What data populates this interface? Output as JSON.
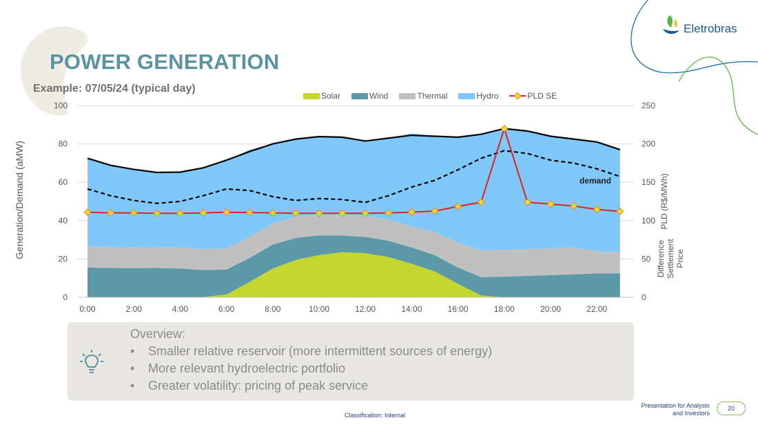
{
  "slide": {
    "title": "POWER GENERATION",
    "subtitle": "Example: 07/05/24 (typical day)",
    "logo_text": "Eletrobras",
    "classification": "Classification: Internal",
    "footer_text": "Presentation for Analysts and Investors",
    "page_number": "20"
  },
  "colors": {
    "solar": "#c6d630",
    "wind": "#5b98a8",
    "thermal": "#c0c0c0",
    "hydro": "#80c8fa",
    "pld": "#e02020",
    "pld_marker": "#f5d43a",
    "title": "#5b93a3",
    "overview_bg": "#e8e7e0"
  },
  "overview": {
    "title": "Overview:",
    "items": [
      "Smaller relative reservoir (more intermittent sources of energy)",
      "More relevant hydroelectric portfolio",
      "Greater volatility: pricing of peak service"
    ]
  },
  "chart_data": {
    "type": "area",
    "title": "",
    "xlabel": "",
    "ylabel": "Generation/Demand (aMW)",
    "y2label": "PLD (R$/MWh)",
    "y2label_note": "Difference Settlement Price",
    "ylim": [
      0,
      100
    ],
    "y2lim": [
      0,
      250
    ],
    "yticks": [
      0,
      20,
      40,
      60,
      80,
      100
    ],
    "y2ticks": [
      0,
      50,
      100,
      150,
      200,
      250
    ],
    "grid": true,
    "legend_position": "top",
    "x": [
      "0:00",
      "1:00",
      "2:00",
      "3:00",
      "4:00",
      "5:00",
      "6:00",
      "7:00",
      "8:00",
      "9:00",
      "10:00",
      "11:00",
      "12:00",
      "13:00",
      "14:00",
      "15:00",
      "16:00",
      "17:00",
      "18:00",
      "19:00",
      "20:00",
      "21:00",
      "22:00",
      "23:00"
    ],
    "x_tick_labels": [
      "0:00",
      "2:00",
      "4:00",
      "6:00",
      "8:00",
      "10:00",
      "12:00",
      "14:00",
      "16:00",
      "18:00",
      "20:00",
      "22:00"
    ],
    "stacked_series": [
      {
        "name": "Solar",
        "color_key": "solar",
        "values": [
          0,
          0,
          0,
          0,
          0,
          0.2,
          1.5,
          8,
          15,
          19.5,
          22,
          23.5,
          23,
          21,
          17.5,
          13.5,
          7,
          1,
          0,
          0,
          0,
          0,
          0,
          0
        ]
      },
      {
        "name": "Wind",
        "color_key": "wind",
        "values": [
          15.5,
          15.3,
          15.2,
          15.3,
          15,
          14,
          13,
          12.5,
          12.5,
          11.5,
          10.3,
          8.7,
          8.5,
          8.5,
          8.5,
          8.5,
          8.5,
          9.5,
          10.8,
          11.2,
          11.5,
          12,
          12.5,
          12.5
        ]
      },
      {
        "name": "Thermal",
        "color_key": "thermal",
        "values": [
          11,
          11,
          11,
          11,
          11,
          11,
          11,
          11,
          11,
          11,
          11,
          11,
          11,
          11,
          11,
          12,
          13,
          14,
          14,
          14,
          14,
          14,
          11.5,
          11
        ]
      },
      {
        "name": "Hydro",
        "color_key": "hydro",
        "values": [
          46,
          42.5,
          40.5,
          38.8,
          39.3,
          42.3,
          46,
          45.5,
          41.5,
          40.5,
          40.5,
          40.3,
          39,
          42.5,
          48.5,
          50,
          55,
          60.5,
          63.2,
          61.5,
          58.5,
          57,
          57,
          53.5
        ]
      }
    ],
    "line_series": [
      {
        "name": "Total generation",
        "style": "solid",
        "axis": "left",
        "values": [
          72.5,
          68.8,
          66.7,
          65.1,
          65.3,
          67.5,
          71.5,
          76,
          80,
          82.5,
          83.8,
          83.5,
          81.5,
          83,
          84.5,
          84,
          83.5,
          85,
          88,
          86.7,
          84,
          82.5,
          81,
          77
        ]
      },
      {
        "name": "demand",
        "style": "dashed",
        "axis": "left",
        "label": "demand",
        "values": [
          56.5,
          53,
          50.5,
          49,
          50,
          53,
          56.5,
          55.7,
          52.5,
          50.5,
          51.5,
          51,
          49.5,
          53,
          57.5,
          61,
          66.5,
          72.5,
          76.5,
          75,
          71.5,
          70,
          67,
          63
        ]
      },
      {
        "name": "PLD SE",
        "style": "markers",
        "axis": "right",
        "values": [
          111,
          110,
          110,
          109.5,
          109.5,
          110,
          111,
          110.5,
          110,
          109.5,
          109.5,
          109.5,
          109.5,
          110,
          111,
          112.5,
          118.5,
          124,
          220,
          124,
          121.5,
          119,
          114.5,
          112
        ]
      }
    ],
    "legend": [
      {
        "name": "Solar",
        "kind": "area",
        "color_key": "solar"
      },
      {
        "name": "Wind",
        "kind": "area",
        "color_key": "wind"
      },
      {
        "name": "Thermal",
        "kind": "area",
        "color_key": "thermal"
      },
      {
        "name": "Hydro",
        "kind": "area",
        "color_key": "hydro"
      },
      {
        "name": "PLD SE",
        "kind": "line-marker",
        "color_key": "pld"
      }
    ]
  }
}
